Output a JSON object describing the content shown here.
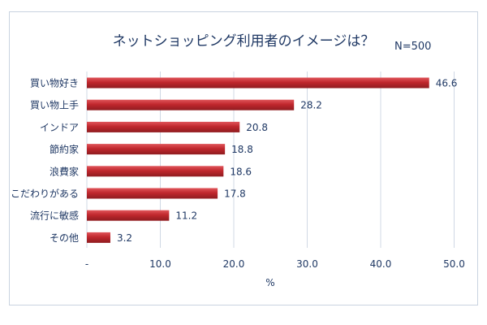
{
  "chart_data": {
    "type": "bar",
    "orientation": "horizontal",
    "title": "ネットショッピング利用者のイメージは？",
    "note": "N=500",
    "categories": [
      "買い物好き",
      "買い物上手",
      "インドア",
      "節約家",
      "浪費家",
      "こだわりがある",
      "流行に敏感",
      "その他"
    ],
    "values": [
      46.6,
      28.2,
      20.8,
      18.8,
      18.6,
      17.8,
      11.2,
      3.2
    ],
    "data_labels": [
      "46.6",
      "28.2",
      "20.8",
      "18.8",
      "18.6",
      "17.8",
      "11.2",
      "3.2"
    ],
    "xlabel": "%",
    "ylabel": "",
    "xlim": [
      0,
      50
    ],
    "ticks": [
      0,
      10,
      20,
      30,
      40,
      50
    ],
    "tick_labels": [
      "-",
      "10.0",
      "20.0",
      "30.0",
      "40.0",
      "50.0"
    ],
    "grid": "vertical",
    "legend": "none",
    "colors": {
      "bar": "#c0272d",
      "bar_highlight": "#e0555a",
      "bar_shadow": "#8f1c20",
      "grid": "#d0d8e4",
      "text": "#1f3864"
    }
  }
}
